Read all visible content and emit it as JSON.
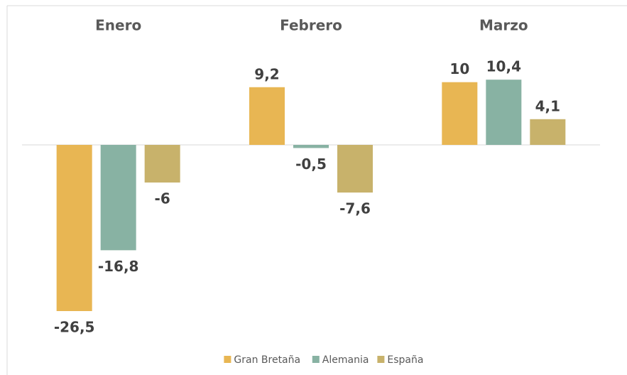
{
  "chart_data": {
    "type": "bar",
    "categories": [
      "Enero",
      "Febrero",
      "Marzo"
    ],
    "series": [
      {
        "name": "Gran Bretaña",
        "color": "#E8B653",
        "values": [
          -26.5,
          9.2,
          10
        ],
        "value_labels": [
          "-26,5",
          "9,2",
          "10"
        ]
      },
      {
        "name": "Alemania",
        "color": "#88B2A3",
        "values": [
          -16.8,
          -0.5,
          10.4
        ],
        "value_labels": [
          "-16,8",
          "-0,5",
          "10,4"
        ]
      },
      {
        "name": "España",
        "color": "#C8B26B",
        "values": [
          -6,
          -7.6,
          4.1
        ],
        "value_labels": [
          "-6",
          "-7,6",
          "4,1"
        ]
      }
    ],
    "legend": "bottom"
  }
}
